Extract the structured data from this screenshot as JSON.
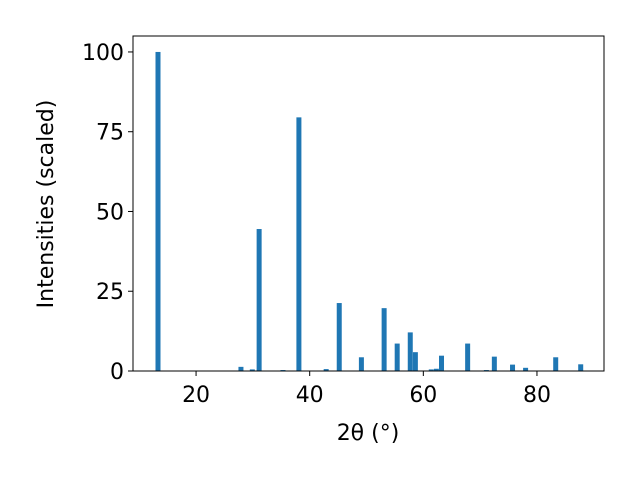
{
  "chart_data": {
    "type": "bar",
    "xlabel": "2θ (°)",
    "ylabel": "Intensities (scaled)",
    "x": [
      13.3,
      27.9,
      29.9,
      31.1,
      35.3,
      38.1,
      42.9,
      45.2,
      49.1,
      53.1,
      55.4,
      57.7,
      58.6,
      61.4,
      62.3,
      63.2,
      67.8,
      71.1,
      72.5,
      75.7,
      78.0,
      83.3,
      87.7
    ],
    "values": [
      100,
      1.3,
      0.5,
      44.5,
      0.3,
      79.5,
      0.6,
      21.3,
      4.3,
      19.7,
      8.6,
      12.1,
      5.9,
      0.5,
      0.7,
      4.8,
      8.6,
      0.3,
      4.5,
      2.0,
      1.0,
      4.3,
      2.1
    ],
    "color": "#1f77b4",
    "xlim": [
      8.9,
      91.8
    ],
    "xticks": [
      20,
      40,
      60,
      80
    ],
    "ylim": [
      0,
      105
    ],
    "yticks": [
      0,
      25,
      50,
      75,
      100
    ]
  }
}
